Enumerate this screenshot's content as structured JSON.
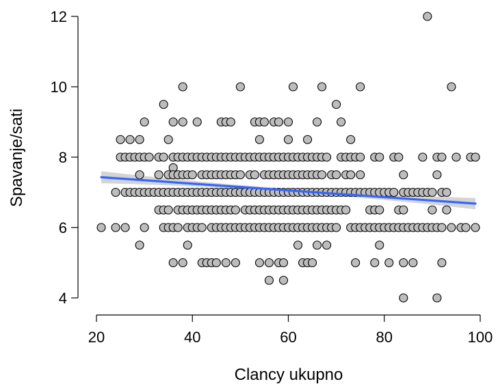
{
  "chart_data": {
    "type": "scatter",
    "title": "",
    "xlabel": "Clancy ukupno",
    "ylabel": "Spavanje/sati",
    "xlim": [
      20,
      100
    ],
    "ylim": [
      4,
      12
    ],
    "xticks": [
      "20",
      "40",
      "60",
      "80",
      "100"
    ],
    "yticks": [
      "4",
      "6",
      "8",
      "10",
      "12"
    ],
    "grid": false,
    "colors": {
      "point_fill": "#bdbdbd",
      "point_stroke": "#000000",
      "trend_line": "#3366ff",
      "confidence_band": "#cccccc"
    },
    "trend_line": {
      "x": [
        21,
        99
      ],
      "y": [
        7.43,
        6.68
      ],
      "band_halfwidth_start": 0.17,
      "band_halfwidth_mid": 0.05,
      "band_halfwidth_end": 0.16
    },
    "points": [
      [
        89,
        12
      ],
      [
        38,
        10
      ],
      [
        50,
        10
      ],
      [
        61,
        10
      ],
      [
        67,
        10
      ],
      [
        75,
        10
      ],
      [
        94,
        10
      ],
      [
        34,
        9.5
      ],
      [
        70,
        9.5
      ],
      [
        30,
        9
      ],
      [
        36,
        9
      ],
      [
        38,
        9
      ],
      [
        41,
        9
      ],
      [
        46,
        9
      ],
      [
        47,
        9
      ],
      [
        48,
        9
      ],
      [
        53,
        9
      ],
      [
        54,
        9
      ],
      [
        55,
        9
      ],
      [
        57,
        9
      ],
      [
        58,
        9
      ],
      [
        60,
        9
      ],
      [
        66,
        9
      ],
      [
        71,
        9
      ],
      [
        25,
        8.5
      ],
      [
        27,
        8.5
      ],
      [
        29,
        8.5
      ],
      [
        35,
        8.5
      ],
      [
        54,
        8.5
      ],
      [
        60,
        8.5
      ],
      [
        64,
        8.5
      ],
      [
        73,
        8.5
      ],
      [
        25,
        8
      ],
      [
        26,
        8
      ],
      [
        27,
        8
      ],
      [
        28,
        8
      ],
      [
        29,
        8
      ],
      [
        30,
        8
      ],
      [
        31,
        8
      ],
      [
        33,
        8
      ],
      [
        34,
        8
      ],
      [
        36,
        8
      ],
      [
        37,
        8
      ],
      [
        38,
        8
      ],
      [
        39,
        8
      ],
      [
        40,
        8
      ],
      [
        41,
        8
      ],
      [
        42,
        8
      ],
      [
        43,
        8
      ],
      [
        44,
        8
      ],
      [
        45,
        8
      ],
      [
        46,
        8
      ],
      [
        47,
        8
      ],
      [
        48,
        8
      ],
      [
        49,
        8
      ],
      [
        50,
        8
      ],
      [
        51,
        8
      ],
      [
        52,
        8
      ],
      [
        53,
        8
      ],
      [
        54,
        8
      ],
      [
        55,
        8
      ],
      [
        56,
        8
      ],
      [
        57,
        8
      ],
      [
        58,
        8
      ],
      [
        59,
        8
      ],
      [
        60,
        8
      ],
      [
        61,
        8
      ],
      [
        62,
        8
      ],
      [
        63,
        8
      ],
      [
        64,
        8
      ],
      [
        65,
        8
      ],
      [
        66,
        8
      ],
      [
        67,
        8
      ],
      [
        68,
        8
      ],
      [
        71,
        8
      ],
      [
        72,
        8
      ],
      [
        73,
        8
      ],
      [
        74,
        8
      ],
      [
        75,
        8
      ],
      [
        78,
        8
      ],
      [
        79,
        8
      ],
      [
        82,
        8
      ],
      [
        83,
        8
      ],
      [
        88,
        8
      ],
      [
        91,
        8
      ],
      [
        92,
        8
      ],
      [
        95,
        8
      ],
      [
        98,
        8
      ],
      [
        99,
        8
      ],
      [
        36,
        7.7
      ],
      [
        29,
        7.5
      ],
      [
        33,
        7.5
      ],
      [
        35,
        7.5
      ],
      [
        36,
        7.5
      ],
      [
        37,
        7.5
      ],
      [
        38,
        7.5
      ],
      [
        39,
        7.5
      ],
      [
        40,
        7.5
      ],
      [
        42,
        7.5
      ],
      [
        43,
        7.5
      ],
      [
        44,
        7.5
      ],
      [
        45,
        7.5
      ],
      [
        46,
        7.5
      ],
      [
        47,
        7.5
      ],
      [
        48,
        7.5
      ],
      [
        49,
        7.5
      ],
      [
        50,
        7.5
      ],
      [
        52,
        7.5
      ],
      [
        53,
        7.5
      ],
      [
        55,
        7.5
      ],
      [
        56,
        7.5
      ],
      [
        57,
        7.5
      ],
      [
        58,
        7.5
      ],
      [
        59,
        7.5
      ],
      [
        60,
        7.5
      ],
      [
        61,
        7.5
      ],
      [
        62,
        7.5
      ],
      [
        63,
        7.5
      ],
      [
        64,
        7.5
      ],
      [
        65,
        7.5
      ],
      [
        66,
        7.5
      ],
      [
        67,
        7.5
      ],
      [
        69,
        7.5
      ],
      [
        70,
        7.5
      ],
      [
        72,
        7.5
      ],
      [
        73,
        7.5
      ],
      [
        75,
        7.5
      ],
      [
        84,
        7.5
      ],
      [
        91,
        7.5
      ],
      [
        24,
        7
      ],
      [
        26,
        7
      ],
      [
        27,
        7
      ],
      [
        28,
        7
      ],
      [
        29,
        7
      ],
      [
        30,
        7
      ],
      [
        31,
        7
      ],
      [
        32,
        7
      ],
      [
        33,
        7
      ],
      [
        34,
        7
      ],
      [
        35,
        7
      ],
      [
        36,
        7
      ],
      [
        37,
        7
      ],
      [
        38,
        7
      ],
      [
        39,
        7
      ],
      [
        40,
        7
      ],
      [
        41,
        7
      ],
      [
        42,
        7
      ],
      [
        43,
        7
      ],
      [
        44,
        7
      ],
      [
        45,
        7
      ],
      [
        46,
        7
      ],
      [
        47,
        7
      ],
      [
        48,
        7
      ],
      [
        49,
        7
      ],
      [
        50,
        7
      ],
      [
        51,
        7
      ],
      [
        52,
        7
      ],
      [
        53,
        7
      ],
      [
        54,
        7
      ],
      [
        55,
        7
      ],
      [
        56,
        7
      ],
      [
        57,
        7
      ],
      [
        58,
        7
      ],
      [
        59,
        7
      ],
      [
        60,
        7
      ],
      [
        61,
        7
      ],
      [
        62,
        7
      ],
      [
        63,
        7
      ],
      [
        64,
        7
      ],
      [
        65,
        7
      ],
      [
        66,
        7
      ],
      [
        67,
        7
      ],
      [
        68,
        7
      ],
      [
        69,
        7
      ],
      [
        70,
        7
      ],
      [
        71,
        7
      ],
      [
        72,
        7
      ],
      [
        73,
        7
      ],
      [
        74,
        7
      ],
      [
        75,
        7
      ],
      [
        76,
        7
      ],
      [
        77,
        7
      ],
      [
        78,
        7
      ],
      [
        79,
        7
      ],
      [
        80,
        7
      ],
      [
        81,
        7
      ],
      [
        82,
        7
      ],
      [
        84,
        7
      ],
      [
        85,
        7
      ],
      [
        86,
        7
      ],
      [
        87,
        7
      ],
      [
        88,
        7
      ],
      [
        89,
        7
      ],
      [
        90,
        7
      ],
      [
        92,
        7
      ],
      [
        93,
        7
      ],
      [
        33,
        6.5
      ],
      [
        34,
        6.5
      ],
      [
        35,
        6.5
      ],
      [
        37,
        6.5
      ],
      [
        38,
        6.5
      ],
      [
        39,
        6.5
      ],
      [
        40,
        6.5
      ],
      [
        41,
        6.5
      ],
      [
        42,
        6.5
      ],
      [
        43,
        6.5
      ],
      [
        44,
        6.5
      ],
      [
        45,
        6.5
      ],
      [
        46,
        6.5
      ],
      [
        47,
        6.5
      ],
      [
        48,
        6.5
      ],
      [
        49,
        6.5
      ],
      [
        51,
        6.5
      ],
      [
        52,
        6.5
      ],
      [
        53,
        6.5
      ],
      [
        54,
        6.5
      ],
      [
        55,
        6.5
      ],
      [
        56,
        6.5
      ],
      [
        57,
        6.5
      ],
      [
        58,
        6.5
      ],
      [
        59,
        6.5
      ],
      [
        60,
        6.5
      ],
      [
        61,
        6.5
      ],
      [
        62,
        6.5
      ],
      [
        63,
        6.5
      ],
      [
        64,
        6.5
      ],
      [
        65,
        6.5
      ],
      [
        66,
        6.5
      ],
      [
        67,
        6.5
      ],
      [
        68,
        6.5
      ],
      [
        69,
        6.5
      ],
      [
        70,
        6.5
      ],
      [
        71,
        6.5
      ],
      [
        72,
        6.5
      ],
      [
        77,
        6.5
      ],
      [
        78,
        6.5
      ],
      [
        79,
        6.5
      ],
      [
        83,
        6.5
      ],
      [
        84,
        6.5
      ],
      [
        90,
        6.5
      ],
      [
        93,
        6.5
      ],
      [
        21,
        6
      ],
      [
        24,
        6
      ],
      [
        26,
        6
      ],
      [
        30,
        6
      ],
      [
        34,
        6
      ],
      [
        35,
        6
      ],
      [
        36,
        6
      ],
      [
        37,
        6
      ],
      [
        39,
        6
      ],
      [
        40,
        6
      ],
      [
        41,
        6
      ],
      [
        42,
        6
      ],
      [
        44,
        6
      ],
      [
        45,
        6
      ],
      [
        46,
        6
      ],
      [
        47,
        6
      ],
      [
        48,
        6
      ],
      [
        49,
        6
      ],
      [
        50,
        6
      ],
      [
        51,
        6
      ],
      [
        52,
        6
      ],
      [
        53,
        6
      ],
      [
        54,
        6
      ],
      [
        55,
        6
      ],
      [
        56,
        6
      ],
      [
        57,
        6
      ],
      [
        58,
        6
      ],
      [
        59,
        6
      ],
      [
        60,
        6
      ],
      [
        61,
        6
      ],
      [
        62,
        6
      ],
      [
        63,
        6
      ],
      [
        64,
        6
      ],
      [
        65,
        6
      ],
      [
        66,
        6
      ],
      [
        67,
        6
      ],
      [
        68,
        6
      ],
      [
        69,
        6
      ],
      [
        70,
        6
      ],
      [
        73,
        6
      ],
      [
        74,
        6
      ],
      [
        75,
        6
      ],
      [
        76,
        6
      ],
      [
        77,
        6
      ],
      [
        78,
        6
      ],
      [
        79,
        6
      ],
      [
        80,
        6
      ],
      [
        81,
        6
      ],
      [
        82,
        6
      ],
      [
        83,
        6
      ],
      [
        84,
        6
      ],
      [
        85,
        6
      ],
      [
        86,
        6
      ],
      [
        87,
        6
      ],
      [
        88,
        6
      ],
      [
        89,
        6
      ],
      [
        90,
        6
      ],
      [
        91,
        6
      ],
      [
        92,
        6
      ],
      [
        94,
        6
      ],
      [
        96,
        6
      ],
      [
        97,
        6
      ],
      [
        99,
        6
      ],
      [
        29,
        5.5
      ],
      [
        39,
        5.5
      ],
      [
        62,
        5.5
      ],
      [
        66,
        5.5
      ],
      [
        68,
        5.5
      ],
      [
        79,
        5.5
      ],
      [
        36,
        5
      ],
      [
        38,
        5
      ],
      [
        42,
        5
      ],
      [
        43,
        5
      ],
      [
        44,
        5
      ],
      [
        45,
        5
      ],
      [
        47,
        5
      ],
      [
        49,
        5
      ],
      [
        54,
        5
      ],
      [
        56,
        5
      ],
      [
        58,
        5
      ],
      [
        59,
        5
      ],
      [
        63,
        5
      ],
      [
        64,
        5
      ],
      [
        65,
        5
      ],
      [
        74,
        5
      ],
      [
        78,
        5
      ],
      [
        81,
        5
      ],
      [
        84,
        5
      ],
      [
        86,
        5
      ],
      [
        92,
        5
      ],
      [
        56,
        4.5
      ],
      [
        59,
        4.5
      ],
      [
        84,
        4
      ],
      [
        91,
        4
      ]
    ]
  }
}
